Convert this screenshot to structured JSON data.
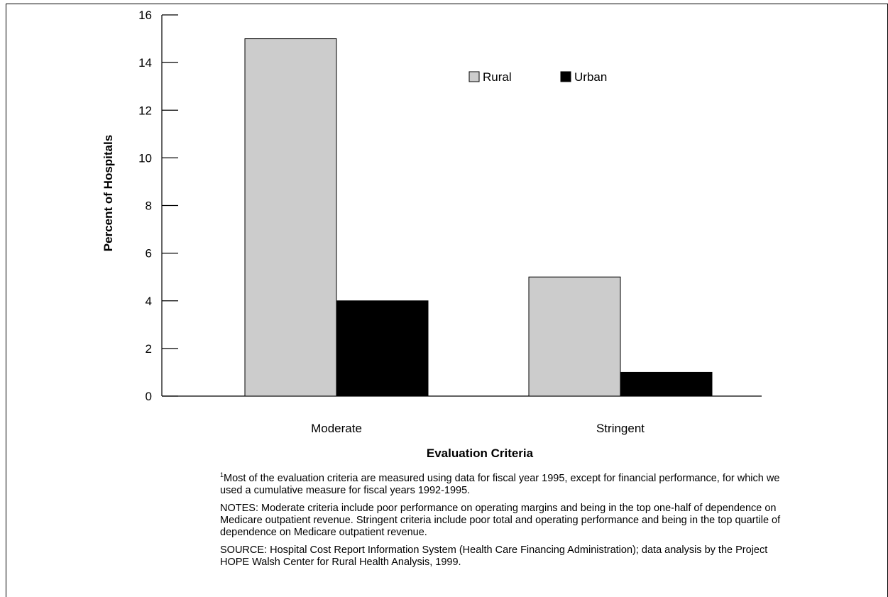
{
  "chart_data": {
    "type": "bar",
    "categories": [
      "Moderate",
      "Stringent"
    ],
    "series": [
      {
        "name": "Rural",
        "values": [
          15,
          5
        ],
        "color": "#cccccc"
      },
      {
        "name": "Urban",
        "values": [
          4,
          1
        ],
        "color": "#000000"
      }
    ],
    "xlabel": "Evaluation Criteria",
    "ylabel": "Percent of Hospitals",
    "ylim": [
      0,
      16
    ],
    "yticks": [
      "0",
      "2",
      "4",
      "6",
      "8",
      "10",
      "12",
      "14",
      "16"
    ],
    "grid": false,
    "legend_position": "top-right"
  },
  "notes": {
    "footnote_mark": "1",
    "footnote": "Most of the evaluation criteria are measured using data for fiscal year 1995, except for financial performance, for which we used a cumulative measure for fiscal years 1992-1995.",
    "notes": "NOTES: Moderate criteria include poor performance on operating margins and being in the top one-half of dependence on Medicare outpatient revenue.  Stringent criteria include poor total and operating performance and being in the top quartile of dependence on Medicare outpatient revenue.",
    "source": "SOURCE: Hospital Cost Report Information System (Health Care Financing Administration); data analysis by the Project HOPE Walsh Center for Rural Health Analysis, 1999."
  }
}
